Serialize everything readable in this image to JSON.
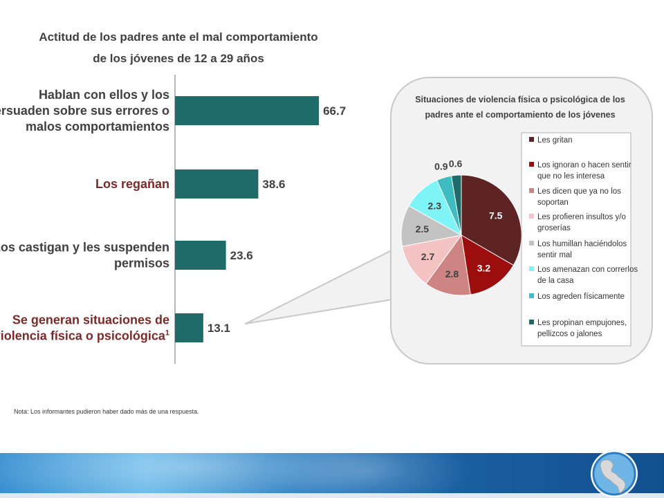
{
  "chart_data": [
    {
      "type": "bar",
      "title": "Actitud de los padres ante el mal comportamiento",
      "subtitle": "de los jóvenes de 12 a 29 años",
      "categories": [
        [
          "Hablan con ellos y los",
          "persuaden sobre sus errores o",
          "malos comportamientos"
        ],
        [
          "Los regañan"
        ],
        [
          "Los castigan y les suspenden",
          "permisos"
        ],
        [
          "Se generan situaciones de",
          "violencia física o psicológica"
        ]
      ],
      "footnote_marker": "1",
      "values": [
        66.7,
        38.6,
        23.6,
        13.1
      ],
      "value_labels": [
        "66.7",
        "38.6",
        "23.6",
        "13.1"
      ],
      "xlim": [
        0,
        100
      ],
      "orientation": "horizontal",
      "bar_color": "#1e6b69",
      "label_colors": [
        "#404040",
        "#7b2a2a",
        "#404040",
        "#7b2a2a"
      ]
    },
    {
      "type": "pie",
      "title": "Situaciones de violencia física o psicológica de los",
      "subtitle": "padres ante el comportamiento de los jóvenes",
      "values": [
        7.5,
        3.2,
        2.8,
        2.7,
        2.5,
        2.3,
        0.9,
        0.6
      ],
      "value_labels": [
        "7.5",
        "3.2",
        "2.8",
        "2.7",
        "2.5",
        "2.3",
        "0.9",
        "0.6"
      ],
      "legend": [
        [
          "Les gritan"
        ],
        [
          "Los ignoran o hacen sentir",
          "que no les interesa"
        ],
        [
          "Les dicen que ya no los",
          "soportan"
        ],
        [
          "Les profieren insultos y/o",
          "groserías"
        ],
        [
          "Los humillan haciéndolos",
          "sentir mal"
        ],
        [
          "Los amenazan con correrlos",
          "de la casa"
        ],
        [
          "Los agreden físicamente"
        ],
        [
          "Les propinan empujones,",
          "pellizcos o jalones"
        ]
      ],
      "colors": [
        "#5e2323",
        "#9c0d0d",
        "#cf8484",
        "#f4c4c4",
        "#c3c3c3",
        "#7ff4f7",
        "#3fbcc2",
        "#1e6b69"
      ],
      "label_colors": [
        "#ffffff",
        "#ffffff",
        "#404040",
        "#404040",
        "#404040",
        "#404040",
        "#404040",
        "#404040"
      ],
      "legend_placement": "right"
    }
  ],
  "note": "Nota: Los informantes pudieron haber dado más de una respuesta."
}
